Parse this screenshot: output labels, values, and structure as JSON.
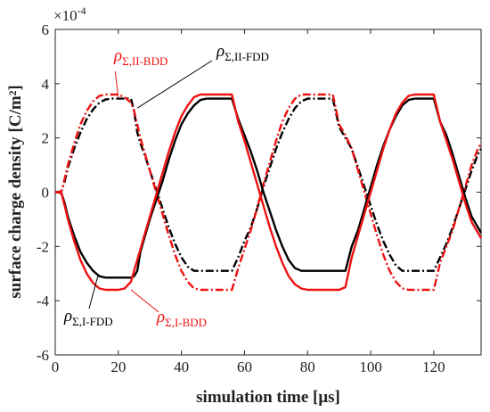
{
  "chart_data": {
    "type": "line",
    "title": "",
    "xlabel": "simulation time [μs]",
    "ylabel": "surface charge density [C/m²]",
    "y_scale_label": "×10",
    "y_scale_exponent": "-4",
    "xlim": [
      0,
      135
    ],
    "ylim": [
      -6,
      6
    ],
    "xticks": [
      0,
      20,
      40,
      60,
      80,
      100,
      120
    ],
    "yticks": [
      -6,
      -4,
      -2,
      0,
      2,
      4,
      6
    ],
    "grid": false,
    "legend": "none (inline annotations)",
    "series": [
      {
        "key": "II-FDD",
        "color": "#000000",
        "style": "dashdot",
        "x": [
          0,
          1,
          2,
          3,
          4,
          6,
          8,
          10,
          12,
          14,
          16,
          18,
          20,
          22,
          24,
          25,
          26,
          27,
          28,
          30,
          32,
          34,
          36,
          38,
          40,
          42,
          44,
          46,
          48,
          50,
          52,
          54,
          56,
          58,
          60,
          62,
          64,
          66,
          68,
          70,
          72,
          74,
          76,
          78,
          80,
          82,
          84,
          86,
          88,
          90,
          92,
          94,
          96,
          98,
          100,
          102,
          104,
          106,
          108,
          110,
          112,
          114,
          116,
          118,
          120,
          122,
          124,
          126,
          128,
          130,
          132,
          134,
          135
        ],
        "y": [
          0,
          0,
          0.05,
          0.4,
          0.9,
          1.6,
          2.2,
          2.7,
          3.05,
          3.3,
          3.42,
          3.45,
          3.45,
          3.45,
          3.45,
          3.0,
          2.2,
          1.8,
          1.5,
          0.8,
          0.1,
          -0.6,
          -1.3,
          -1.9,
          -2.4,
          -2.75,
          -2.9,
          -2.9,
          -2.9,
          -2.9,
          -2.9,
          -2.9,
          -2.9,
          -2.4,
          -1.8,
          -1.3,
          -0.6,
          0.2,
          0.9,
          1.6,
          2.2,
          2.7,
          3.1,
          3.35,
          3.45,
          3.45,
          3.45,
          3.45,
          3.45,
          2.4,
          2.0,
          1.6,
          0.9,
          0.2,
          -0.5,
          -1.2,
          -1.8,
          -2.3,
          -2.7,
          -2.9,
          -2.9,
          -2.9,
          -2.9,
          -2.9,
          -2.9,
          -2.4,
          -1.9,
          -1.3,
          -0.6,
          0.1,
          0.8,
          1.4,
          1.6
        ]
      },
      {
        "key": "II-BDD",
        "color": "#ee1111",
        "style": "dashdot",
        "x": [
          0,
          1,
          2,
          3,
          4,
          6,
          8,
          10,
          12,
          14,
          16,
          18,
          20,
          22,
          24,
          25,
          26,
          27,
          28,
          30,
          32,
          34,
          36,
          38,
          40,
          42,
          44,
          46,
          48,
          50,
          52,
          54,
          56,
          58,
          60,
          62,
          64,
          66,
          68,
          70,
          72,
          74,
          76,
          78,
          80,
          82,
          84,
          86,
          88,
          90,
          92,
          94,
          96,
          98,
          100,
          102,
          104,
          106,
          108,
          110,
          112,
          114,
          116,
          118,
          120,
          122,
          124,
          126,
          128,
          130,
          132,
          134,
          135
        ],
        "y": [
          0,
          0,
          0.05,
          0.5,
          1.0,
          1.8,
          2.5,
          3.0,
          3.35,
          3.55,
          3.6,
          3.6,
          3.6,
          3.5,
          3.3,
          3.0,
          2.5,
          2.0,
          1.6,
          0.8,
          0.0,
          -0.8,
          -1.6,
          -2.3,
          -2.9,
          -3.3,
          -3.55,
          -3.6,
          -3.6,
          -3.6,
          -3.6,
          -3.6,
          -3.6,
          -2.8,
          -2.1,
          -1.4,
          -0.6,
          0.3,
          1.1,
          1.9,
          2.6,
          3.1,
          3.45,
          3.6,
          3.6,
          3.6,
          3.6,
          3.6,
          3.6,
          2.5,
          2.1,
          1.6,
          0.8,
          0.0,
          -0.8,
          -1.6,
          -2.3,
          -2.9,
          -3.3,
          -3.55,
          -3.6,
          -3.6,
          -3.6,
          -3.6,
          -3.6,
          -2.6,
          -2.0,
          -1.4,
          -0.6,
          0.2,
          1.0,
          1.6,
          1.8
        ]
      },
      {
        "key": "I-FDD",
        "color": "#000000",
        "style": "solid",
        "x": [
          0,
          1,
          2,
          3,
          4,
          6,
          8,
          10,
          12,
          14,
          16,
          18,
          20,
          22,
          24,
          25,
          26,
          27,
          28,
          30,
          32,
          34,
          36,
          38,
          40,
          42,
          44,
          46,
          48,
          50,
          52,
          54,
          56,
          58,
          60,
          62,
          64,
          66,
          68,
          70,
          72,
          74,
          76,
          78,
          80,
          82,
          84,
          86,
          88,
          90,
          92,
          94,
          96,
          98,
          100,
          102,
          104,
          106,
          108,
          110,
          112,
          114,
          116,
          118,
          120,
          122,
          124,
          126,
          128,
          130,
          132,
          134,
          135
        ],
        "y": [
          0,
          0,
          -0.05,
          -0.4,
          -0.9,
          -1.6,
          -2.2,
          -2.6,
          -2.9,
          -3.1,
          -3.15,
          -3.15,
          -3.15,
          -3.15,
          -3.15,
          -3.1,
          -2.9,
          -2.2,
          -1.8,
          -1.0,
          -0.3,
          0.4,
          1.2,
          1.9,
          2.5,
          2.9,
          3.2,
          3.4,
          3.45,
          3.45,
          3.45,
          3.45,
          3.45,
          2.7,
          2.1,
          1.5,
          0.8,
          0.0,
          -0.7,
          -1.4,
          -2.0,
          -2.5,
          -2.8,
          -2.9,
          -2.9,
          -2.9,
          -2.9,
          -2.9,
          -2.9,
          -2.9,
          -2.9,
          -2.0,
          -1.4,
          -0.6,
          0.2,
          1.0,
          1.7,
          2.3,
          2.8,
          3.2,
          3.4,
          3.45,
          3.45,
          3.45,
          3.45,
          2.6,
          2.1,
          1.4,
          0.6,
          -0.2,
          -0.9,
          -1.3,
          -1.5
        ]
      },
      {
        "key": "I-BDD",
        "color": "#ee1111",
        "style": "solid",
        "x": [
          0,
          1,
          2,
          3,
          4,
          6,
          8,
          10,
          12,
          14,
          16,
          18,
          20,
          22,
          24,
          25,
          26,
          27,
          28,
          30,
          32,
          34,
          36,
          38,
          40,
          42,
          44,
          46,
          48,
          50,
          52,
          54,
          56,
          58,
          60,
          62,
          64,
          66,
          68,
          70,
          72,
          74,
          76,
          78,
          80,
          82,
          84,
          86,
          88,
          90,
          92,
          94,
          96,
          98,
          100,
          102,
          104,
          106,
          108,
          110,
          112,
          114,
          116,
          118,
          120,
          122,
          124,
          126,
          128,
          130,
          132,
          134,
          135
        ],
        "y": [
          0,
          0,
          -0.05,
          -0.5,
          -1.0,
          -1.8,
          -2.5,
          -3.0,
          -3.35,
          -3.55,
          -3.6,
          -3.6,
          -3.6,
          -3.55,
          -3.3,
          -2.9,
          -2.5,
          -2.1,
          -1.7,
          -0.9,
          -0.1,
          0.7,
          1.5,
          2.2,
          2.8,
          3.2,
          3.5,
          3.6,
          3.6,
          3.6,
          3.6,
          3.6,
          3.6,
          2.6,
          1.9,
          1.1,
          0.3,
          -0.5,
          -1.3,
          -2.0,
          -2.6,
          -3.1,
          -3.4,
          -3.55,
          -3.6,
          -3.6,
          -3.6,
          -3.6,
          -3.6,
          -3.6,
          -3.5,
          -2.4,
          -1.6,
          -0.8,
          0.0,
          0.8,
          1.6,
          2.3,
          2.9,
          3.3,
          3.55,
          3.6,
          3.6,
          3.6,
          3.6,
          2.6,
          1.9,
          1.2,
          0.4,
          -0.4,
          -1.1,
          -1.5,
          -1.7
        ]
      }
    ],
    "annotations": [
      {
        "id": "II-BDD",
        "text": "ρ",
        "sub": "Σ,II-BDD",
        "color": "#ee1111"
      },
      {
        "id": "II-FDD",
        "text": "ρ",
        "sub": "Σ,II-FDD",
        "color": "#000000"
      },
      {
        "id": "I-FDD",
        "text": "ρ",
        "sub": "Σ,I-FDD",
        "color": "#000000"
      },
      {
        "id": "I-BDD",
        "text": "ρ",
        "sub": "Σ,I-BDD",
        "color": "#ee1111"
      }
    ]
  }
}
